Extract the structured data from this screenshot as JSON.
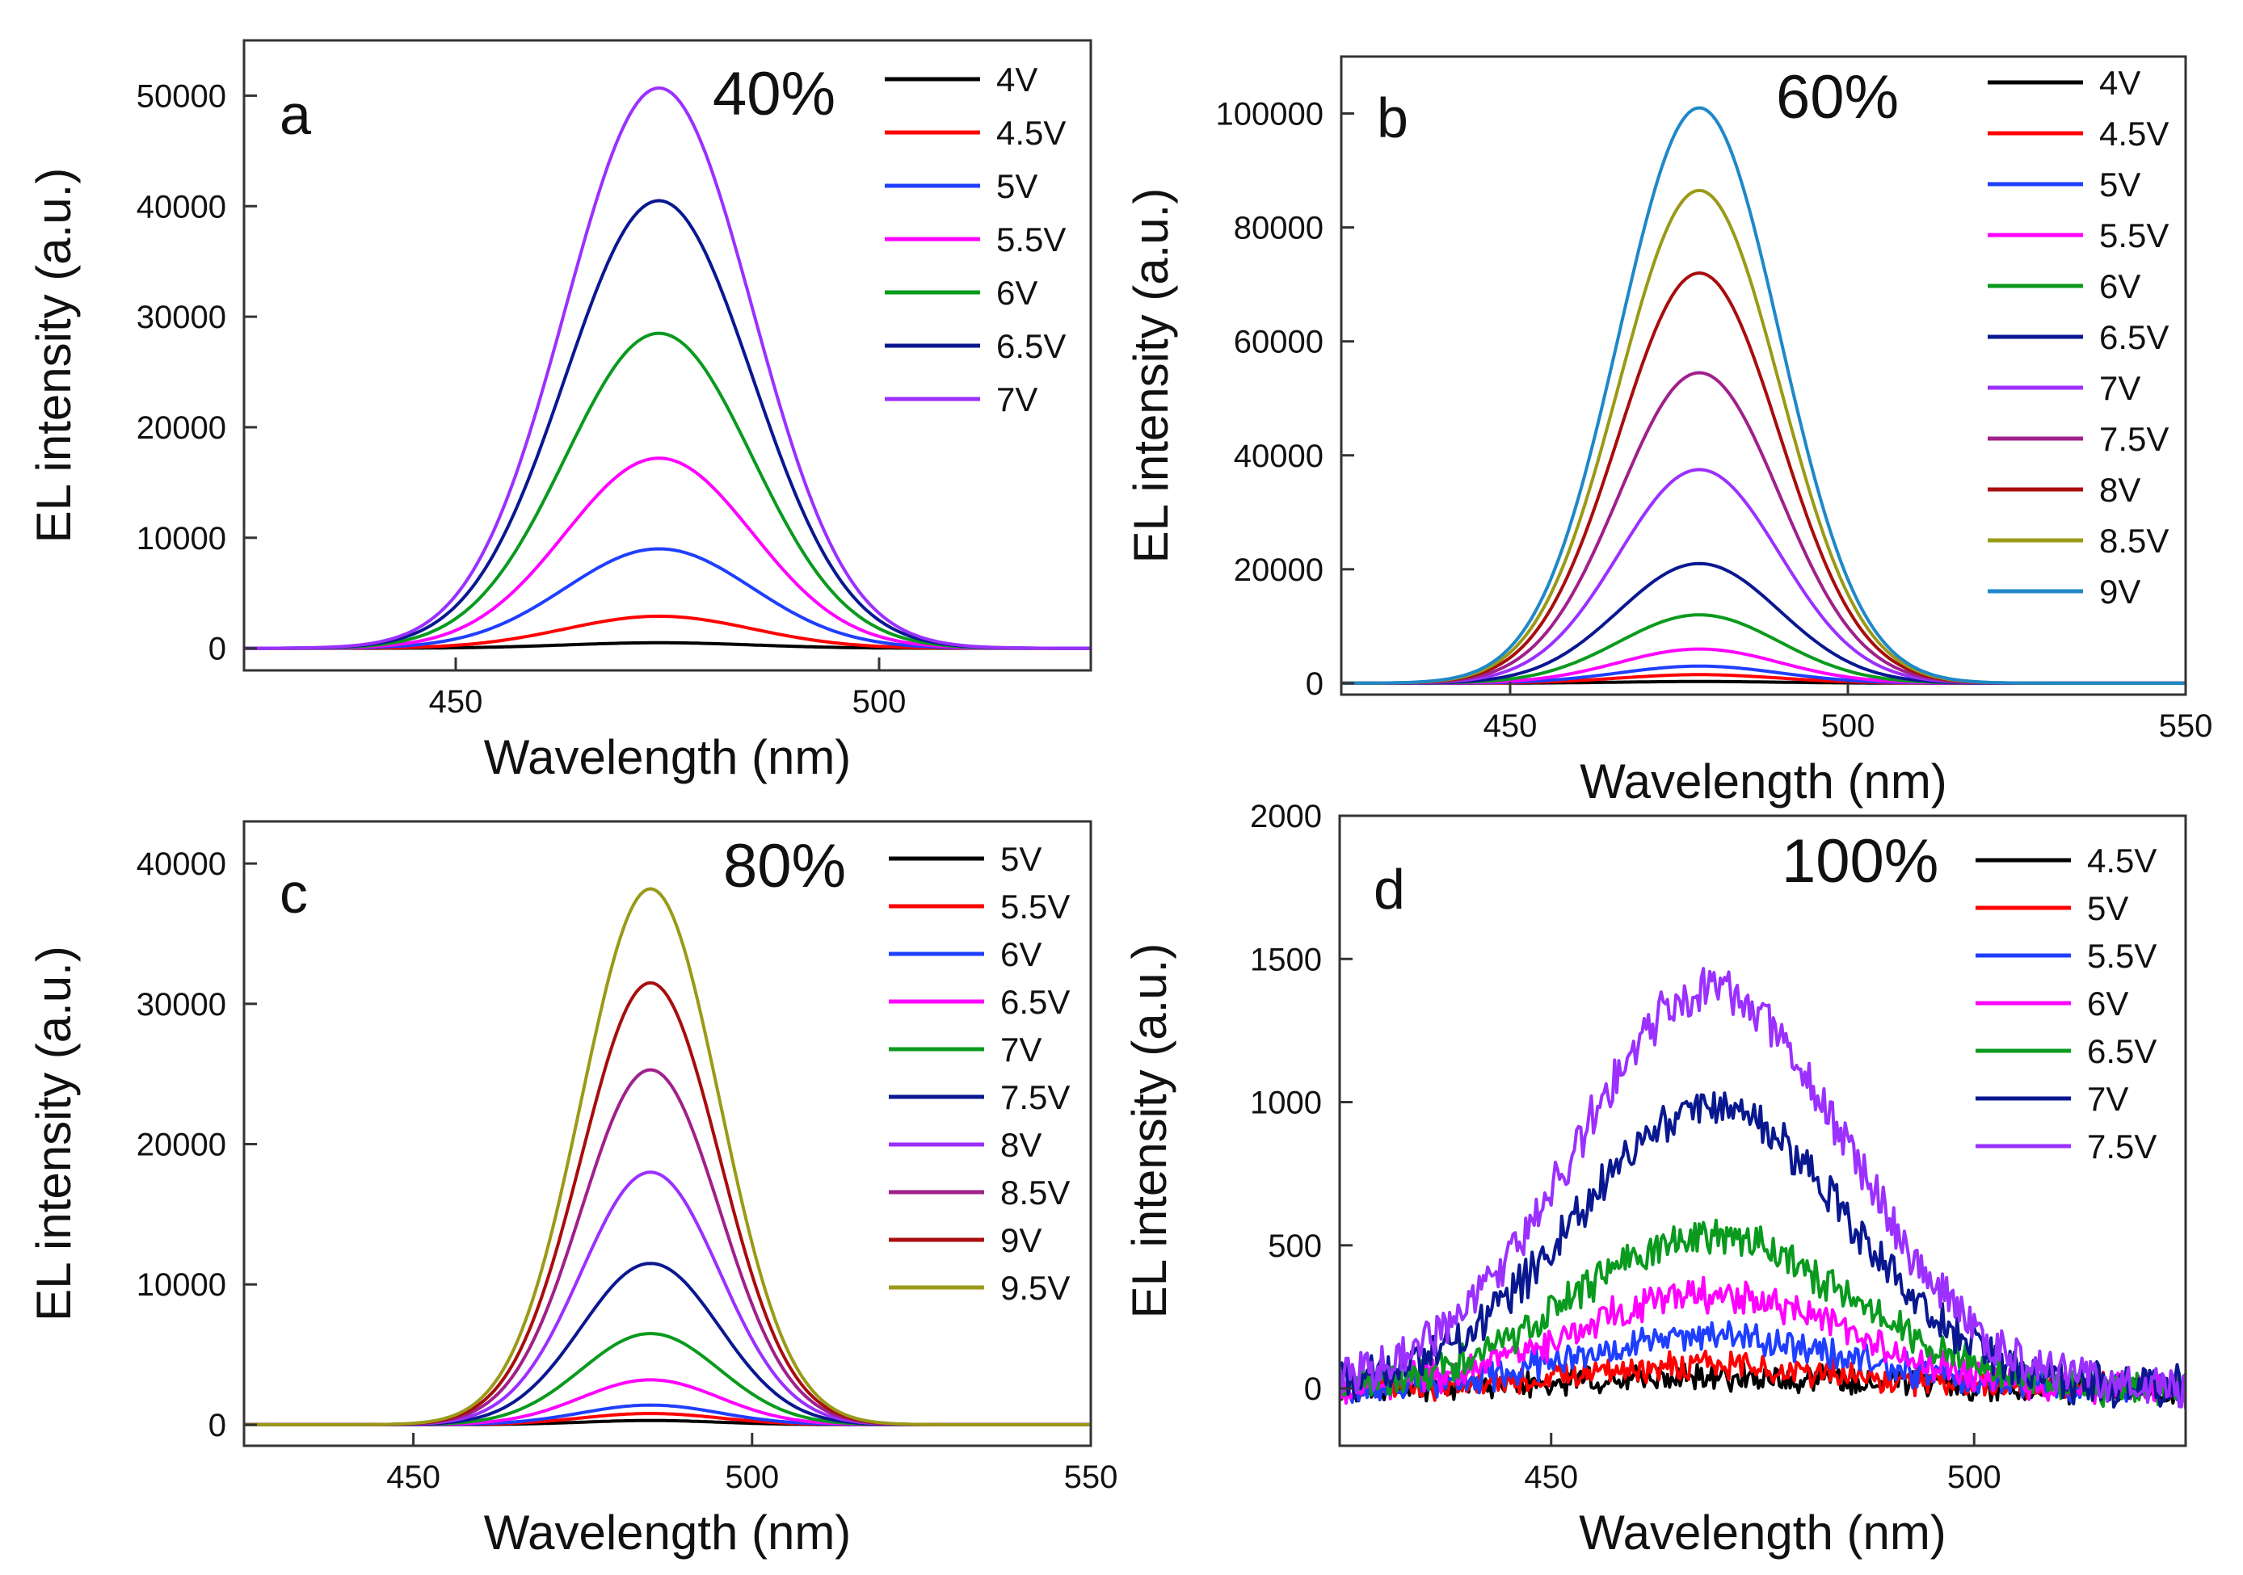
{
  "chart_data": [
    {
      "type": "line",
      "panel": "a",
      "title": "40%",
      "xlabel": "Wavelength (nm)",
      "ylabel": "EL intensity (a.u.)",
      "xlim": [
        425,
        525
      ],
      "ylim": [
        -2000,
        55000
      ],
      "xticks": [
        450,
        500
      ],
      "yticks": [
        0,
        10000,
        20000,
        30000,
        40000,
        50000
      ],
      "legend_position": "top-right",
      "peak_nm": 474,
      "fwhm_nm": 26,
      "noise": 0,
      "series": [
        {
          "name": "4V",
          "color": "#000000",
          "peak": 500
        },
        {
          "name": "4.5V",
          "color": "#ff0000",
          "peak": 2900
        },
        {
          "name": "5V",
          "color": "#1f3fff",
          "peak": 9000
        },
        {
          "name": "5.5V",
          "color": "#ff00ff",
          "peak": 17200
        },
        {
          "name": "6V",
          "color": "#0a9a1e",
          "peak": 28500
        },
        {
          "name": "6.5V",
          "color": "#0a1890",
          "peak": 40500
        },
        {
          "name": "7V",
          "color": "#9b30ff",
          "peak": 50700
        }
      ]
    },
    {
      "type": "line",
      "panel": "b",
      "title": "60%",
      "xlabel": "Wavelength (nm)",
      "ylabel": "EL intensity (a.u.)",
      "xlim": [
        425,
        550
      ],
      "ylim": [
        -2000,
        110000
      ],
      "xticks": [
        450,
        500,
        550
      ],
      "yticks": [
        0,
        20000,
        40000,
        60000,
        80000,
        100000
      ],
      "legend_position": "top-right",
      "peak_nm": 478,
      "fwhm_nm": 28,
      "noise": 0,
      "series": [
        {
          "name": "4V",
          "color": "#000000",
          "peak": 300
        },
        {
          "name": "4.5V",
          "color": "#ff0000",
          "peak": 1500
        },
        {
          "name": "5V",
          "color": "#1f3fff",
          "peak": 3000
        },
        {
          "name": "5.5V",
          "color": "#ff00ff",
          "peak": 6000
        },
        {
          "name": "6V",
          "color": "#0a9a1e",
          "peak": 12000
        },
        {
          "name": "6.5V",
          "color": "#0a1890",
          "peak": 21000
        },
        {
          "name": "7V",
          "color": "#9b30ff",
          "peak": 37500
        },
        {
          "name": "7.5V",
          "color": "#a0208c",
          "peak": 54500
        },
        {
          "name": "8V",
          "color": "#a80d0d",
          "peak": 72000
        },
        {
          "name": "8.5V",
          "color": "#9a9a18",
          "peak": 86500
        },
        {
          "name": "9V",
          "color": "#1e88c8",
          "peak": 101000
        }
      ]
    },
    {
      "type": "line",
      "panel": "c",
      "title": "80%",
      "xlabel": "Wavelength (nm)",
      "ylabel": "EL intensity (a.u.)",
      "xlim": [
        425,
        550
      ],
      "ylim": [
        -1500,
        43000
      ],
      "xticks": [
        450,
        500,
        550
      ],
      "yticks": [
        0,
        10000,
        20000,
        30000,
        40000
      ],
      "legend_position": "top-right",
      "peak_nm": 485,
      "fwhm_nm": 24,
      "noise": 0,
      "series": [
        {
          "name": "5V",
          "color": "#000000",
          "peak": 300
        },
        {
          "name": "5.5V",
          "color": "#ff0000",
          "peak": 800
        },
        {
          "name": "6V",
          "color": "#1f3fff",
          "peak": 1400
        },
        {
          "name": "6.5V",
          "color": "#ff00ff",
          "peak": 3200
        },
        {
          "name": "7V",
          "color": "#0a9a1e",
          "peak": 6500
        },
        {
          "name": "7.5V",
          "color": "#0a1890",
          "peak": 11500
        },
        {
          "name": "8V",
          "color": "#9b30ff",
          "peak": 18000
        },
        {
          "name": "8.5V",
          "color": "#a0208c",
          "peak": 25300
        },
        {
          "name": "9V",
          "color": "#a80d0d",
          "peak": 31500
        },
        {
          "name": "9.5V",
          "color": "#9a9a18",
          "peak": 38200
        }
      ]
    },
    {
      "type": "line",
      "panel": "d",
      "title": "100%",
      "xlabel": "Wavelength (nm)",
      "ylabel": "EL intensity (a.u.)",
      "xlim": [
        425,
        525
      ],
      "ylim": [
        -200,
        2000
      ],
      "xticks": [
        450,
        500
      ],
      "yticks": [
        0,
        500,
        1000,
        1500,
        2000
      ],
      "legend_position": "top-right",
      "peak_nm": 469,
      "fwhm_nm": 38,
      "noise": 1,
      "series": [
        {
          "name": "4.5V",
          "color": "#000000",
          "peak": 40
        },
        {
          "name": "5V",
          "color": "#ff0000",
          "peak": 80
        },
        {
          "name": "5.5V",
          "color": "#1f3fff",
          "peak": 180
        },
        {
          "name": "6V",
          "color": "#ff00ff",
          "peak": 330
        },
        {
          "name": "6.5V",
          "color": "#0a9a1e",
          "peak": 530
        },
        {
          "name": "7V",
          "color": "#0a1890",
          "peak": 980
        },
        {
          "name": "7.5V",
          "color": "#9b30ff",
          "peak": 1390
        }
      ]
    }
  ]
}
